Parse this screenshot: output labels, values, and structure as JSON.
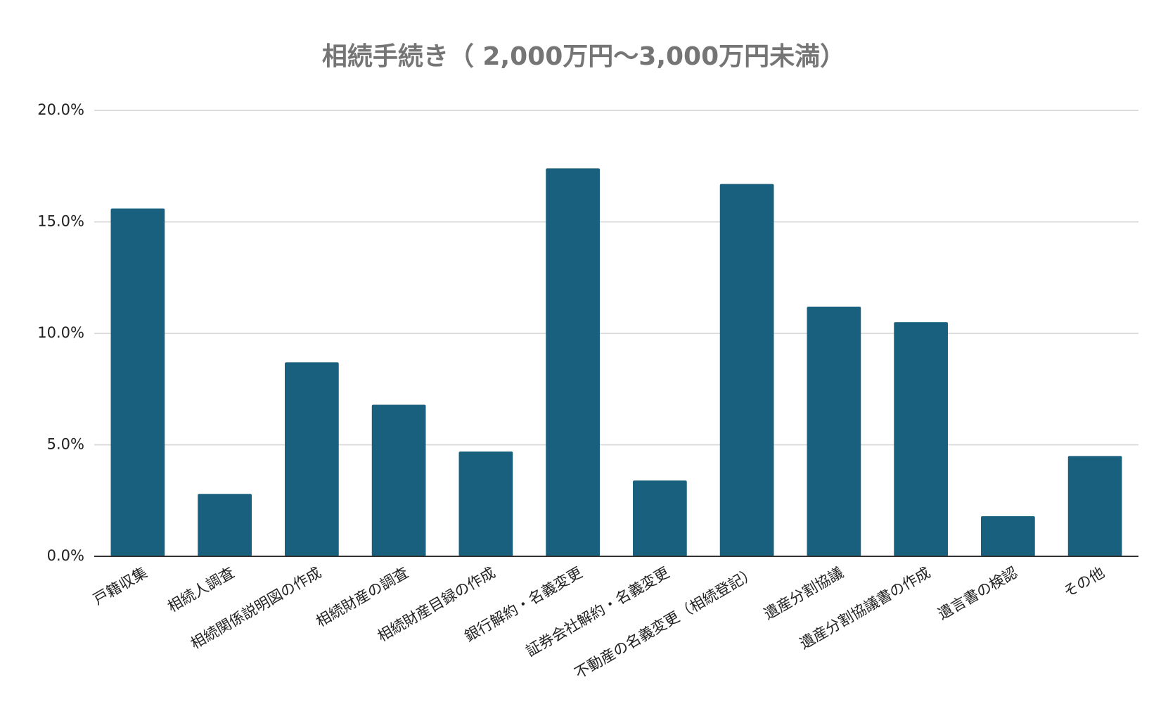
{
  "chart_data": {
    "type": "bar",
    "title": "相続手続き（ 2,000万円～3,000万円未満）",
    "categories": [
      "戸籍収集",
      "相続人調査",
      "相続関係説明図の作成",
      "相続財産の調査",
      "相続財産目録の作成",
      "銀行解約・名義変更",
      "証券会社解約・名義変更",
      "不動産の名義変更（相続登記）",
      "遺産分割協議",
      "遺産分割協議書の作成",
      "遺言書の検認",
      "その他"
    ],
    "values": [
      15.6,
      2.8,
      8.7,
      6.8,
      4.7,
      17.4,
      3.4,
      16.7,
      11.2,
      10.5,
      1.8,
      4.5
    ],
    "color": "#19607f",
    "ylim": [
      0,
      20
    ],
    "yticks": [
      {
        "value": 0,
        "label": "0.0%"
      },
      {
        "value": 5,
        "label": "5.0%"
      },
      {
        "value": 10,
        "label": "10.0%"
      },
      {
        "value": 15,
        "label": "15.0%"
      },
      {
        "value": 20,
        "label": "20.0%"
      }
    ],
    "grid": true
  }
}
